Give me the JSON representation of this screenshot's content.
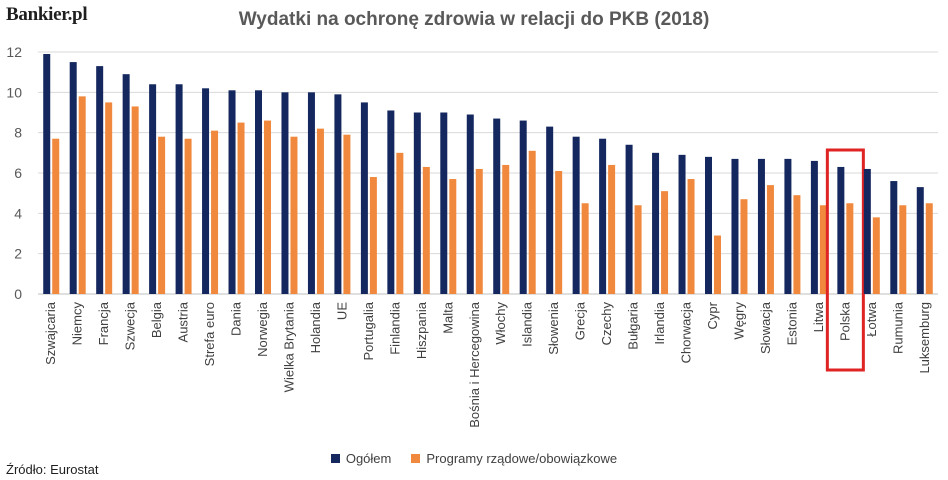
{
  "logo": "Bankier.pl",
  "source": "Źródło: Eurostat",
  "colors": {
    "ogolem": "#14275e",
    "programy": "#f0893d",
    "highlight": "#e02424",
    "grid": "#d9d9d9",
    "axis": "#bfbfbf"
  },
  "chart_data": {
    "type": "bar",
    "title": "Wydatki na ochronę zdrowia w relacji do PKB (2018)",
    "xlabel": "",
    "ylabel": "",
    "ylim": [
      0,
      12
    ],
    "yticks": [
      0,
      2,
      4,
      6,
      8,
      10,
      12
    ],
    "grid": true,
    "legend_position": "bottom",
    "highlighted_category": "Polska",
    "categories": [
      "Szwajcaria",
      "Niemcy",
      "Francja",
      "Szwecja",
      "Belgia",
      "Austria",
      "Strefa euro",
      "Dania",
      "Norwegia",
      "Wielka Brytania",
      "Holandia",
      "UE",
      "Portugalia",
      "Finlandia",
      "Hiszpania",
      "Malta",
      "Bośnia i Hercegowina",
      "Włochy",
      "Islandia",
      "Słowenia",
      "Grecja",
      "Czechy",
      "Bułgaria",
      "Irlandia",
      "Chorwacja",
      "Cypr",
      "Węgry",
      "Słowacja",
      "Estonia",
      "Litwa",
      "Polska",
      "Łotwa",
      "Rumunia",
      "Luksemburg"
    ],
    "series": [
      {
        "name": "Ogółem",
        "values": [
          11.9,
          11.5,
          11.3,
          10.9,
          10.4,
          10.4,
          10.2,
          10.1,
          10.1,
          10.0,
          10.0,
          9.9,
          9.5,
          9.1,
          9.0,
          9.0,
          8.9,
          8.7,
          8.6,
          8.3,
          7.8,
          7.7,
          7.4,
          7.0,
          6.9,
          6.8,
          6.7,
          6.7,
          6.7,
          6.6,
          6.3,
          6.2,
          5.6,
          5.3
        ]
      },
      {
        "name": "Programy rządowe/obowiązkowe",
        "values": [
          7.7,
          9.8,
          9.5,
          9.3,
          7.8,
          7.7,
          8.1,
          8.5,
          8.6,
          7.8,
          8.2,
          7.9,
          5.8,
          7.0,
          6.3,
          5.7,
          6.2,
          6.4,
          7.1,
          6.1,
          4.5,
          6.4,
          4.4,
          5.1,
          5.7,
          2.9,
          4.7,
          5.4,
          4.9,
          4.4,
          4.5,
          3.8,
          4.4,
          4.5
        ]
      }
    ]
  }
}
